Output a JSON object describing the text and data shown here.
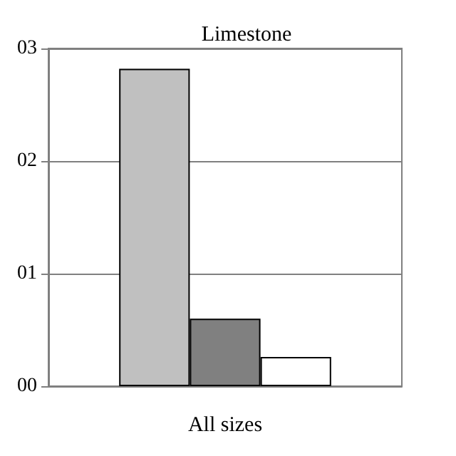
{
  "chart_data": {
    "type": "bar",
    "title": "Limestone",
    "categories": [
      null,
      null,
      "All sizes",
      null,
      null
    ],
    "values": [
      null,
      2.82,
      0.6,
      0.26,
      null
    ],
    "colors": [
      null,
      "#c0c0c0",
      "#808080",
      "#ffffff",
      null
    ],
    "ylim": [
      0,
      3
    ],
    "yticks": [
      {
        "value": 0,
        "label": "00"
      },
      {
        "value": 1,
        "label": "01"
      },
      {
        "value": 2,
        "label": "02"
      },
      {
        "value": 3,
        "label": "03"
      }
    ],
    "grid": "y"
  }
}
